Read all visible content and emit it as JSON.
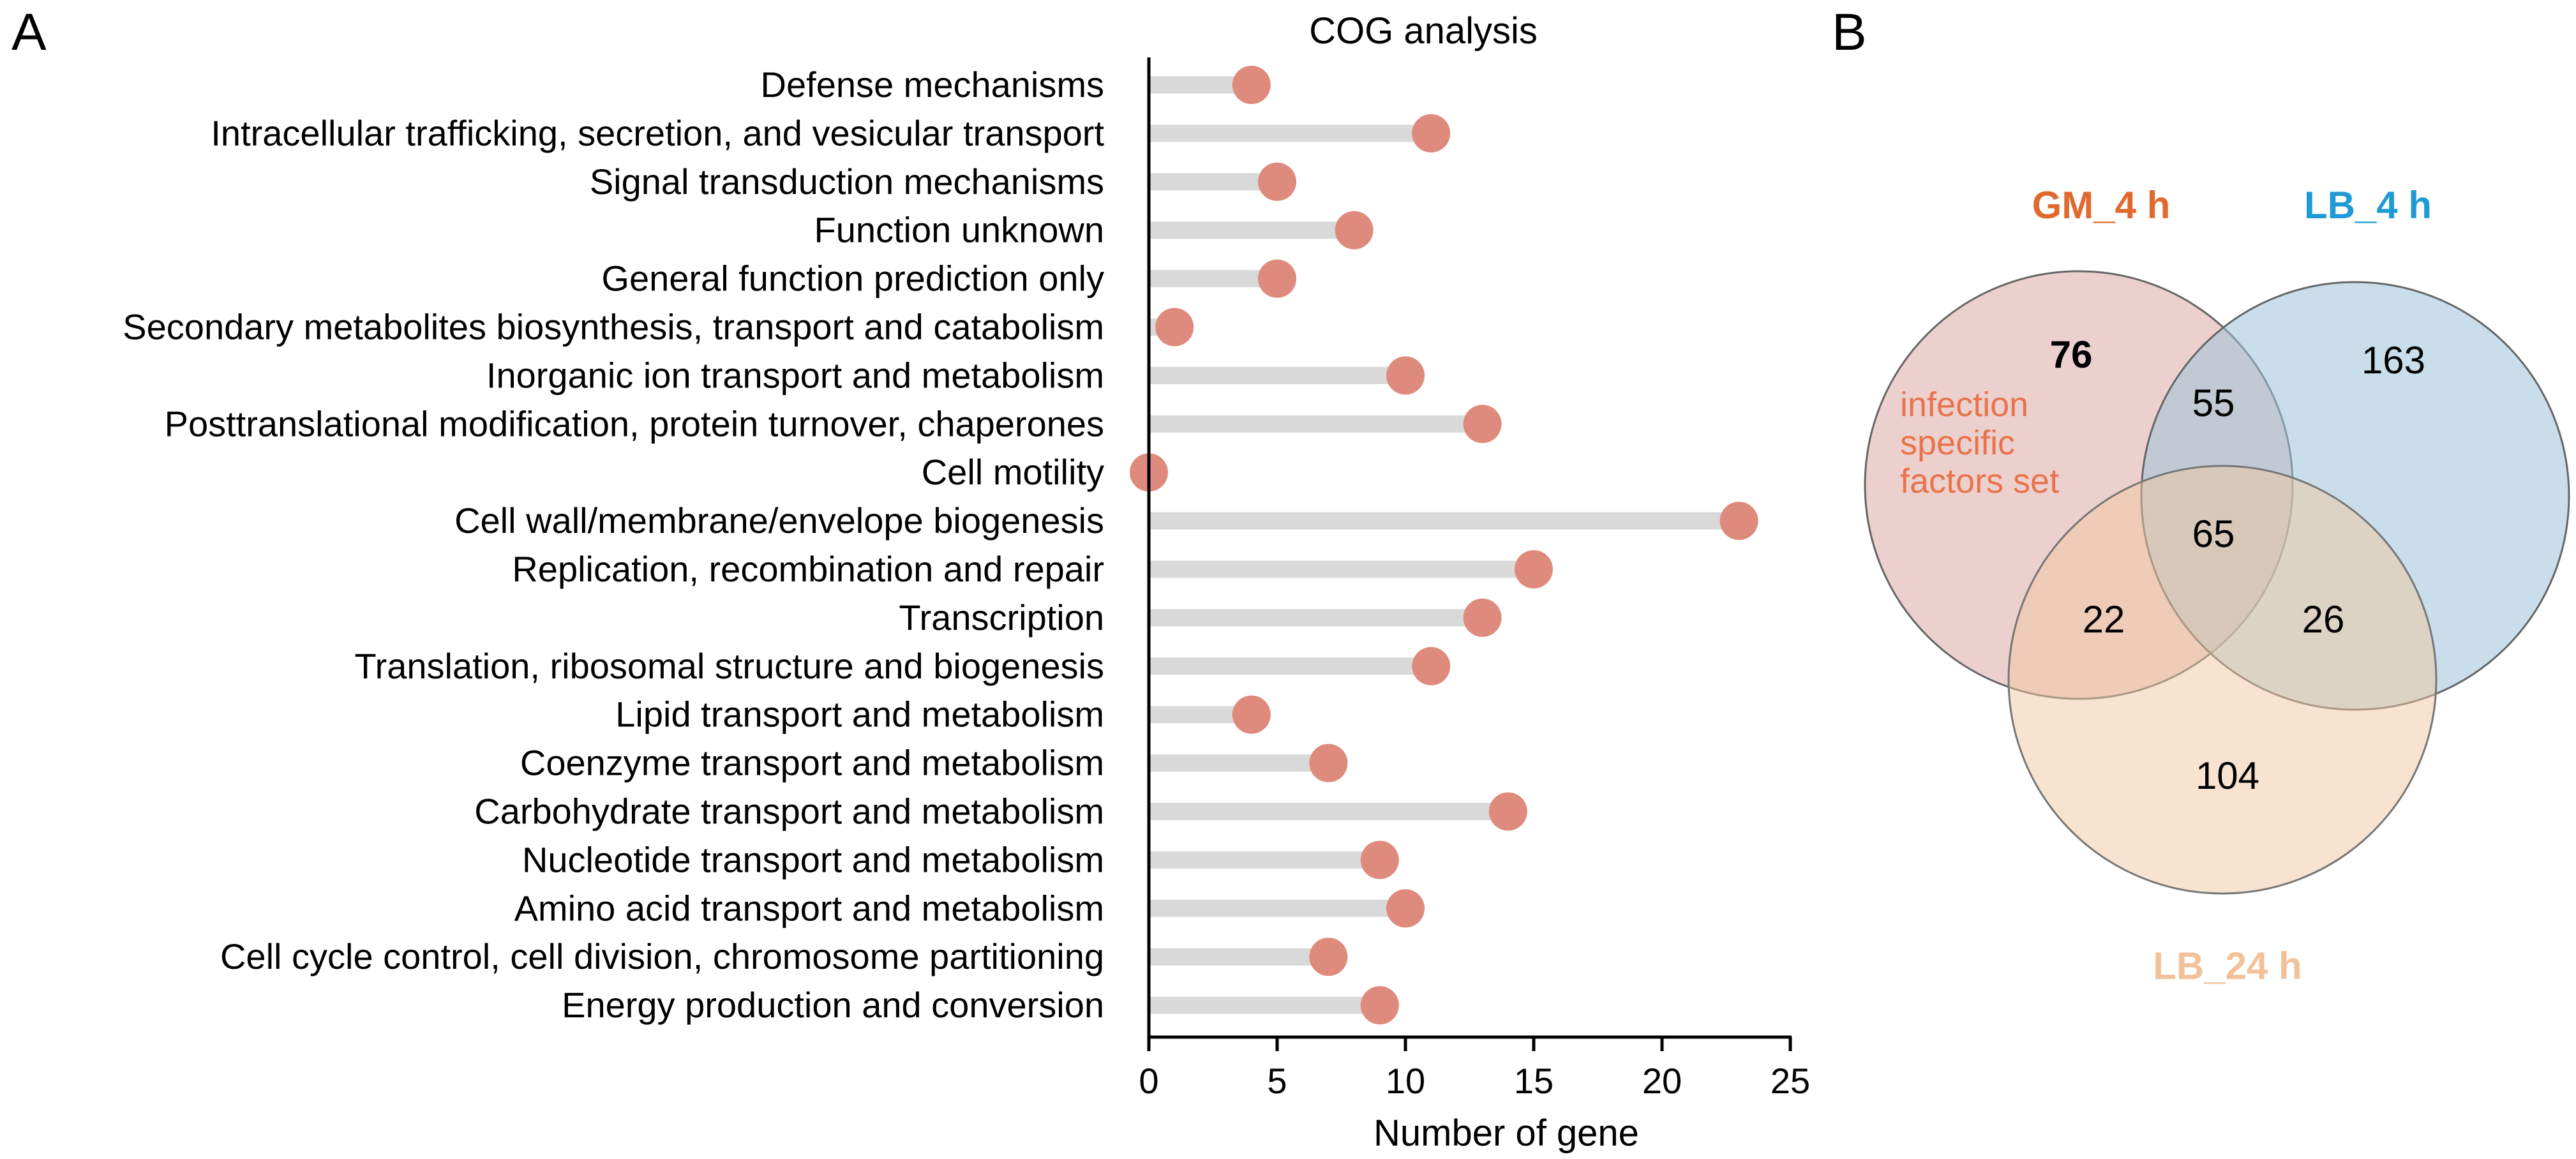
{
  "panels": {
    "a_label": "A",
    "b_label": "B"
  },
  "colors": {
    "stem": "#d9d9d9",
    "dot": "#de8a7c",
    "axis": "#000000",
    "gm": "#e06a2e",
    "lb4": "#1f9ad6",
    "lb24": "#f2c19a"
  },
  "chart_data": [
    {
      "type": "lollipop",
      "title": "COG analysis",
      "xlabel": "Number of gene",
      "ylabel": "",
      "xlim": [
        0,
        25
      ],
      "xticks": [
        0,
        5,
        10,
        15,
        20,
        25
      ],
      "xtick_labels": [
        "0",
        "5",
        "10",
        "15",
        "20",
        "25"
      ],
      "categories": [
        "Defense mechanisms",
        "Intracellular trafficking, secretion, and vesicular transport",
        "Signal transduction mechanisms",
        "Function unknown",
        "General function prediction only",
        "Secondary metabolites biosynthesis, transport and catabolism",
        "Inorganic ion transport and metabolism",
        "Posttranslational modification, protein turnover, chaperones",
        "Cell motility",
        "Cell wall/membrane/envelope biogenesis",
        "Replication, recombination and repair",
        "Transcription",
        "Translation, ribosomal structure and biogenesis",
        "Lipid transport and metabolism",
        "Coenzyme transport and metabolism",
        "Carbohydrate transport and metabolism",
        "Nucleotide transport and metabolism",
        "Amino acid transport and metabolism",
        "Cell cycle control, cell division, chromosome partitioning",
        "Energy production and conversion"
      ],
      "values": [
        4,
        11,
        5,
        8,
        5,
        1,
        10,
        13,
        0,
        23,
        15,
        13,
        11,
        4,
        7,
        14,
        9,
        10,
        7,
        9
      ]
    },
    {
      "type": "venn",
      "sets": [
        {
          "name": "GM_4 h",
          "color": "#e06a2e"
        },
        {
          "name": "LB_4 h",
          "color": "#1f9ad6"
        },
        {
          "name": "LB_24 h",
          "color": "#f2c19a"
        }
      ],
      "regions": {
        "gm_only": "76",
        "lb4_only": "163",
        "lb24_only": "104",
        "gm_lb4": "55",
        "gm_lb24": "22",
        "lb4_lb24": "26",
        "all": "65"
      },
      "annotation": [
        "infection",
        "specific",
        "factors set"
      ]
    }
  ]
}
